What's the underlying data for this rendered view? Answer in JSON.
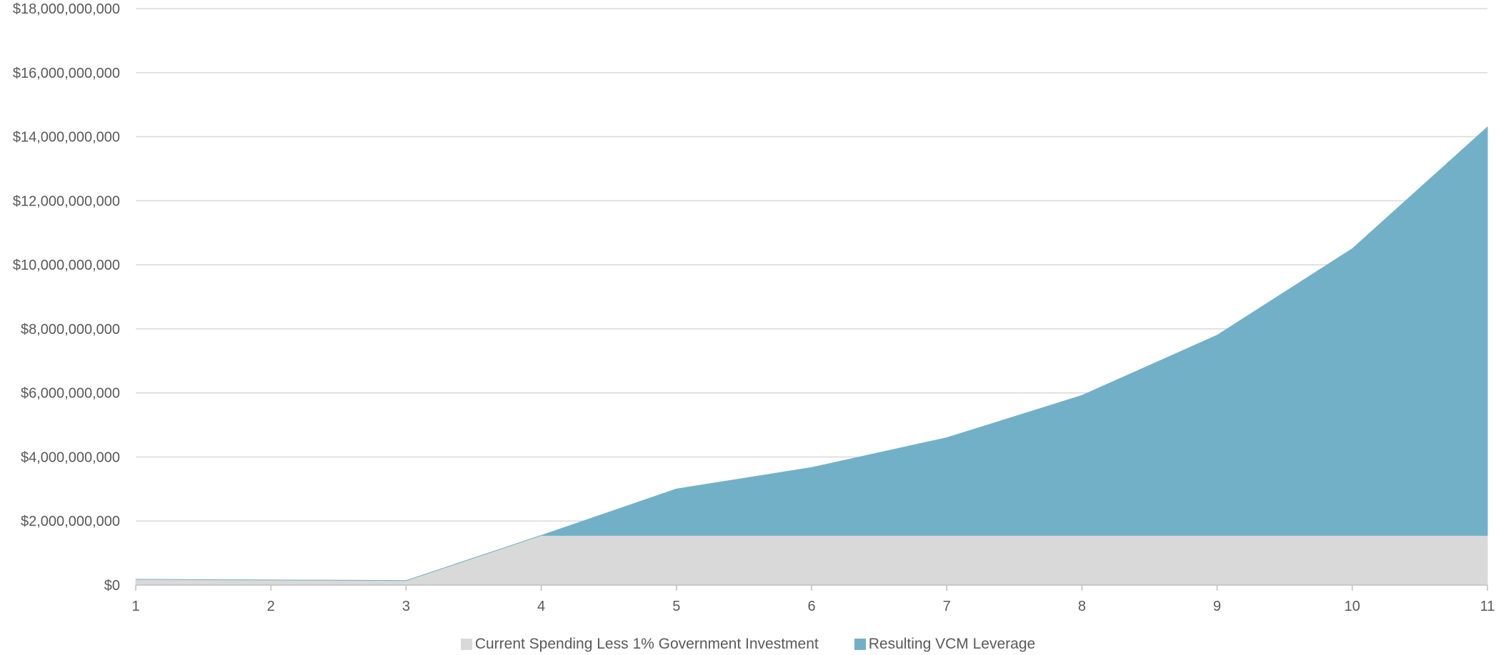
{
  "chart_data": {
    "type": "area",
    "stacked": true,
    "x": [
      "1",
      "2",
      "3",
      "4",
      "5",
      "6",
      "7",
      "8",
      "9",
      "10",
      "11"
    ],
    "ylim": [
      0,
      18000000000
    ],
    "yticks": [
      "$0",
      "$2,000,000,000",
      "$4,000,000,000",
      "$6,000,000,000",
      "$8,000,000,000",
      "$10,000,000,000",
      "$12,000,000,000",
      "$14,000,000,000",
      "$16,000,000,000",
      "$18,000,000,000"
    ],
    "ytick_values": [
      0,
      2000000000,
      4000000000,
      6000000000,
      8000000000,
      10000000000,
      12000000000,
      14000000000,
      16000000000,
      18000000000
    ],
    "grid": true,
    "legend_position": "bottom",
    "series": [
      {
        "name": "Current Spending Less 1% Government Investment",
        "color": "#d9d9d9",
        "values": [
          180000000,
          160000000,
          140000000,
          1550000000,
          1550000000,
          1550000000,
          1550000000,
          1550000000,
          1550000000,
          1550000000,
          1550000000
        ]
      },
      {
        "name": "Resulting VCM Leverage",
        "color": "#72b0c8",
        "values": [
          0,
          0,
          0,
          0,
          1450000000,
          2120000000,
          3050000000,
          4370000000,
          6250000000,
          8950000000,
          12750000000
        ]
      }
    ]
  }
}
